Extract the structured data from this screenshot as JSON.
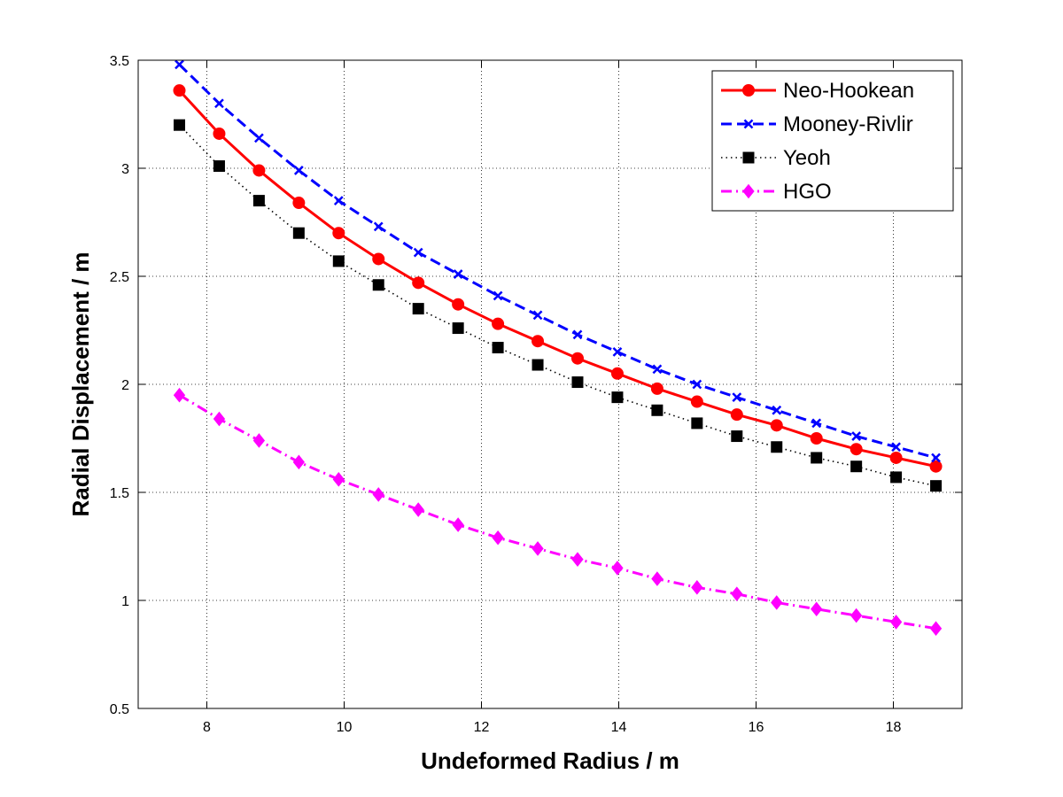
{
  "chart_data": {
    "type": "line",
    "title": "",
    "xlabel": "Undeformed Radius / m",
    "ylabel": "Radial Displacement / m",
    "xlim": [
      7,
      19
    ],
    "ylim": [
      0.5,
      3.5
    ],
    "xticks": [
      8,
      10,
      12,
      14,
      16,
      18
    ],
    "yticks": [
      0.5,
      1,
      1.5,
      2,
      2.5,
      3,
      3.5
    ],
    "xtick_labels": [
      "8",
      "10",
      "12",
      "14",
      "16",
      "18"
    ],
    "ytick_labels": [
      "0.5",
      "1",
      "1.5",
      "2",
      "2.5",
      "3",
      "3.5"
    ],
    "grid": true,
    "legend_position": "top-right",
    "x": [
      7.6,
      8.18,
      8.76,
      9.34,
      9.92,
      10.5,
      11.08,
      11.66,
      12.24,
      12.82,
      13.4,
      13.98,
      14.56,
      15.14,
      15.72,
      16.3,
      16.88,
      17.46,
      18.04,
      18.62
    ],
    "series": [
      {
        "name": "Neo-Hookean",
        "color": "#ff0000",
        "line_style": "solid",
        "marker": "circle",
        "values": [
          3.36,
          3.16,
          2.99,
          2.84,
          2.7,
          2.58,
          2.47,
          2.37,
          2.28,
          2.2,
          2.12,
          2.05,
          1.98,
          1.92,
          1.86,
          1.81,
          1.75,
          1.7,
          1.66,
          1.62
        ]
      },
      {
        "name": "Mooney-Rivlir",
        "color": "#0000ff",
        "line_style": "dashed",
        "marker": "x",
        "values": [
          3.48,
          3.3,
          3.14,
          2.99,
          2.85,
          2.73,
          2.61,
          2.51,
          2.41,
          2.32,
          2.23,
          2.15,
          2.07,
          2.0,
          1.94,
          1.88,
          1.82,
          1.76,
          1.71,
          1.66
        ]
      },
      {
        "name": "Yeoh",
        "color": "#000000",
        "line_style": "dotted",
        "marker": "square",
        "values": [
          3.2,
          3.01,
          2.85,
          2.7,
          2.57,
          2.46,
          2.35,
          2.26,
          2.17,
          2.09,
          2.01,
          1.94,
          1.88,
          1.82,
          1.76,
          1.71,
          1.66,
          1.62,
          1.57,
          1.53
        ]
      },
      {
        "name": "HGO",
        "color": "#ff00ff",
        "line_style": "dashdot",
        "marker": "diamond",
        "values": [
          1.95,
          1.84,
          1.74,
          1.64,
          1.56,
          1.49,
          1.42,
          1.35,
          1.29,
          1.24,
          1.19,
          1.15,
          1.1,
          1.06,
          1.03,
          0.99,
          0.96,
          0.93,
          0.9,
          0.87
        ]
      }
    ]
  }
}
